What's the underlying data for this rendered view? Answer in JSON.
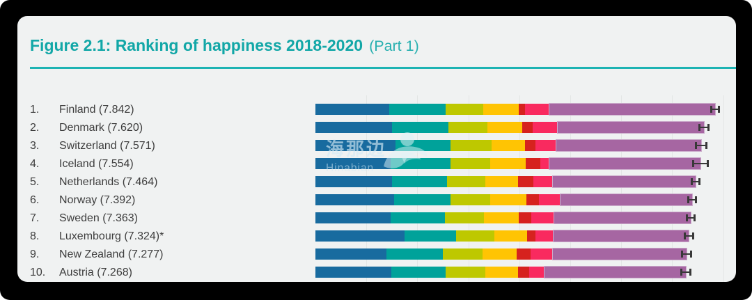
{
  "window": {
    "background_color": "#000000",
    "card_background_color": "#f0f2f2"
  },
  "header": {
    "title_bold": "Figure 2.1: Ranking of happiness 2018-2020",
    "title_part": "(Part 1)",
    "accent_color": "#12a7a7"
  },
  "watermark": {
    "cn": "海那边",
    "en": "Hinabian",
    "swirl_icon": "swirl-bird-logo"
  },
  "chart_data": {
    "type": "bar",
    "orientation": "horizontal",
    "stacked": true,
    "title": "Figure 2.1: Ranking of happiness 2018-2020 (Part 1)",
    "x_axis": {
      "min": 0,
      "max": 8,
      "gridline_step": 1,
      "tick_labels_visible": false,
      "grid": true
    },
    "error_bars": true,
    "segment_keys": [
      "blue",
      "teal",
      "olive",
      "yellow",
      "red",
      "pink",
      "purple"
    ],
    "segment_colors": [
      "#186b9f",
      "#00a29a",
      "#bec800",
      "#ffc403",
      "#d6221e",
      "#f92a5f",
      "#a666a2"
    ],
    "rows": [
      {
        "rank": "1.",
        "country": "Finland",
        "label": "Finland (7.842)",
        "score": 7.842,
        "ci": 0.05,
        "segments": [
          1.446,
          1.106,
          0.741,
          0.691,
          0.124,
          0.481,
          3.253
        ]
      },
      {
        "rank": "2.",
        "country": "Denmark",
        "label": "Denmark (7.620)",
        "score": 7.62,
        "ci": 0.065,
        "segments": [
          1.502,
          1.108,
          0.763,
          0.686,
          0.208,
          0.485,
          2.868
        ]
      },
      {
        "rank": "3.",
        "country": "Switzerland",
        "label": "Switzerland (7.571)",
        "score": 7.571,
        "ci": 0.08,
        "segments": [
          1.566,
          1.079,
          0.816,
          0.653,
          0.204,
          0.413,
          2.84
        ]
      },
      {
        "rank": "4.",
        "country": "Iceland",
        "label": "Iceland (7.554)",
        "score": 7.554,
        "ci": 0.12,
        "segments": [
          1.482,
          1.172,
          0.772,
          0.698,
          0.293,
          0.17,
          2.967
        ]
      },
      {
        "rank": "5.",
        "country": "Netherlands",
        "label": "Netherlands (7.464)",
        "score": 7.464,
        "ci": 0.055,
        "segments": [
          1.501,
          1.079,
          0.753,
          0.647,
          0.302,
          0.384,
          2.798
        ]
      },
      {
        "rank": "6.",
        "country": "Norway",
        "label": "Norway (7.392)",
        "score": 7.392,
        "ci": 0.055,
        "segments": [
          1.543,
          1.108,
          0.782,
          0.703,
          0.249,
          0.427,
          2.58
        ]
      },
      {
        "rank": "7.",
        "country": "Sweden",
        "label": "Sweden (7.363)",
        "score": 7.363,
        "ci": 0.06,
        "segments": [
          1.478,
          1.062,
          0.763,
          0.685,
          0.244,
          0.448,
          2.683
        ]
      },
      {
        "rank": "8.",
        "country": "Luxembourg",
        "label": "Luxembourg (7.324)*",
        "score": 7.324,
        "ci": 0.06,
        "segments": [
          1.751,
          1.003,
          0.76,
          0.639,
          0.166,
          0.353,
          2.652
        ]
      },
      {
        "rank": "9.",
        "country": "New Zealand",
        "label": "New Zealand (7.277)",
        "score": 7.277,
        "ci": 0.068,
        "segments": [
          1.4,
          1.094,
          0.785,
          0.665,
          0.276,
          0.445,
          2.612
        ]
      },
      {
        "rank": "10.",
        "country": "Austria",
        "label": "Austria (7.268)",
        "score": 7.268,
        "ci": 0.07,
        "segments": [
          1.492,
          1.062,
          0.774,
          0.648,
          0.222,
          0.292,
          2.778
        ]
      }
    ]
  }
}
